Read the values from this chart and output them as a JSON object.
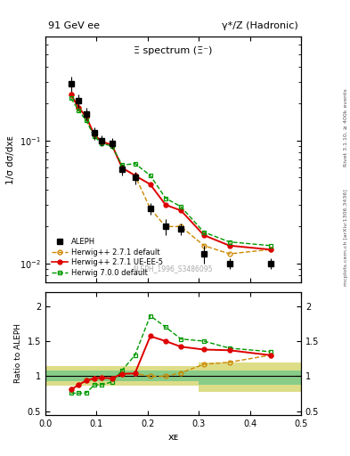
{
  "title_left": "91 GeV ee",
  "title_right": "γ*/Z (Hadronic)",
  "ylabel_main": "1/σ dσ/dxᴇ",
  "ylabel_ratio": "Ratio to ALEPH",
  "xlabel": "xᴇ",
  "plot_title": "Ξ spectrum (Ξ⁻)",
  "watermark": "ALEPH_1996_S3486095",
  "aleph_x": [
    0.05,
    0.065,
    0.08,
    0.095,
    0.11,
    0.13,
    0.15,
    0.175,
    0.205,
    0.235,
    0.265,
    0.31,
    0.36,
    0.44
  ],
  "aleph_y": [
    0.29,
    0.21,
    0.165,
    0.115,
    0.1,
    0.095,
    0.058,
    0.05,
    0.028,
    0.02,
    0.019,
    0.012,
    0.01,
    0.01
  ],
  "aleph_yerr": [
    0.04,
    0.025,
    0.02,
    0.013,
    0.01,
    0.009,
    0.006,
    0.006,
    0.003,
    0.003,
    0.002,
    0.002,
    0.001,
    0.001
  ],
  "hw271d_x": [
    0.05,
    0.065,
    0.08,
    0.095,
    0.11,
    0.13,
    0.15,
    0.175,
    0.205,
    0.235,
    0.265,
    0.31,
    0.36,
    0.44
  ],
  "hw271d_y": [
    0.235,
    0.185,
    0.155,
    0.112,
    0.098,
    0.092,
    0.06,
    0.052,
    0.028,
    0.02,
    0.02,
    0.014,
    0.012,
    0.013
  ],
  "hw271ue_x": [
    0.05,
    0.065,
    0.08,
    0.095,
    0.11,
    0.13,
    0.15,
    0.175,
    0.205,
    0.235,
    0.265,
    0.31,
    0.36,
    0.44
  ],
  "hw271ue_y": [
    0.235,
    0.185,
    0.155,
    0.112,
    0.098,
    0.092,
    0.06,
    0.052,
    0.044,
    0.03,
    0.027,
    0.017,
    0.014,
    0.013
  ],
  "hw700_x": [
    0.05,
    0.065,
    0.08,
    0.095,
    0.11,
    0.13,
    0.15,
    0.175,
    0.205,
    0.235,
    0.265,
    0.31,
    0.36,
    0.44
  ],
  "hw700_y": [
    0.22,
    0.175,
    0.145,
    0.108,
    0.095,
    0.09,
    0.063,
    0.065,
    0.052,
    0.034,
    0.029,
    0.018,
    0.015,
    0.014
  ],
  "ratio_hw271d_x": [
    0.05,
    0.065,
    0.08,
    0.095,
    0.11,
    0.13,
    0.15,
    0.175,
    0.205,
    0.235,
    0.265,
    0.31,
    0.36,
    0.44
  ],
  "ratio_hw271d_y": [
    0.81,
    0.88,
    0.94,
    0.97,
    0.98,
    0.97,
    1.035,
    1.04,
    1.0,
    1.0,
    1.05,
    1.17,
    1.2,
    1.3
  ],
  "ratio_hw271ue_x": [
    0.05,
    0.065,
    0.08,
    0.095,
    0.11,
    0.13,
    0.15,
    0.175,
    0.205,
    0.235,
    0.265,
    0.31,
    0.36,
    0.44
  ],
  "ratio_hw271ue_y": [
    0.81,
    0.88,
    0.94,
    0.97,
    0.98,
    0.97,
    1.035,
    1.04,
    1.57,
    1.5,
    1.42,
    1.38,
    1.37,
    1.3
  ],
  "ratio_hw700_x": [
    0.05,
    0.065,
    0.08,
    0.095,
    0.11,
    0.13,
    0.15,
    0.175,
    0.205,
    0.235,
    0.265,
    0.31,
    0.36,
    0.44
  ],
  "ratio_hw700_y": [
    0.76,
    0.76,
    0.765,
    0.875,
    0.88,
    0.92,
    1.085,
    1.3,
    1.86,
    1.7,
    1.53,
    1.5,
    1.4,
    1.35
  ],
  "band_edges": [
    0.0,
    0.13,
    0.3,
    0.5
  ],
  "band_green_lo": [
    0.935,
    0.935,
    0.875
  ],
  "band_green_hi": [
    1.08,
    1.08,
    1.08
  ],
  "band_yellow_lo": [
    0.87,
    0.87,
    0.78
  ],
  "band_yellow_hi": [
    1.15,
    1.15,
    1.2
  ],
  "color_aleph": "#000000",
  "color_hw271d": "#cc8800",
  "color_hw271ue": "#dd0000",
  "color_hw700": "#009900",
  "color_band_green": "#88cc88",
  "color_band_yellow": "#dddd88",
  "ylim_main": [
    0.007,
    0.7
  ],
  "ylim_ratio": [
    0.45,
    2.2
  ],
  "xlim": [
    0.0,
    0.5
  ],
  "rivet_label": "Rivet 3.1.10, ≥ 400k events",
  "mcplots_label": "mcplots.cern.ch [arXiv:1306.3436]"
}
